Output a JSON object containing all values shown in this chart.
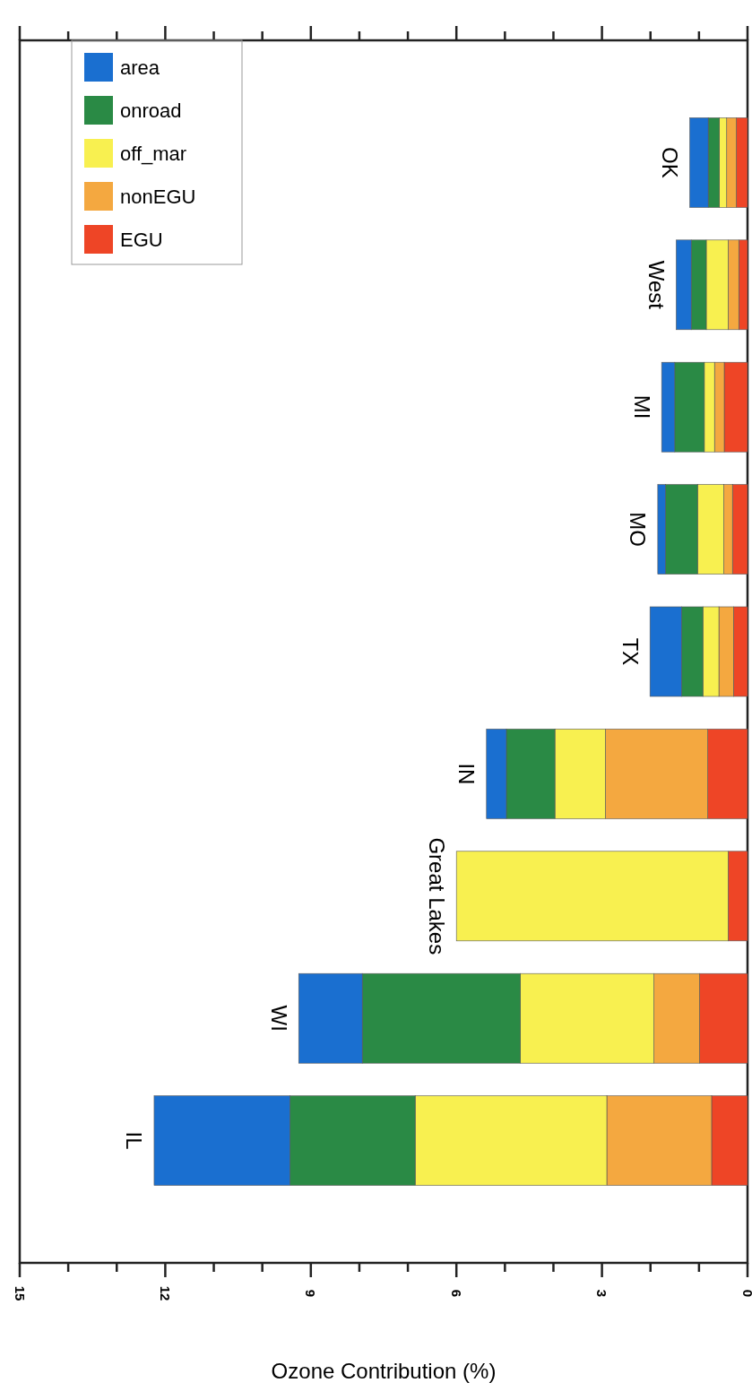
{
  "chart_data": {
    "type": "bar",
    "orientation": "horizontal",
    "stacked": true,
    "xlabel": "Ozone Contribution (%)",
    "categories": [
      "OK",
      "West",
      "MI",
      "MO",
      "TX",
      "IN",
      "Great Lakes",
      "WI",
      "IL"
    ],
    "series": [
      {
        "name": "EGU",
        "color": "#ee4526",
        "values": [
          0.23,
          0.18,
          0.48,
          0.31,
          0.29,
          0.82,
          0.4,
          0.99,
          0.74
        ]
      },
      {
        "name": "nonEGU",
        "color": "#f4a840",
        "values": [
          0.2,
          0.22,
          0.2,
          0.18,
          0.3,
          2.11,
          0,
          0.94,
          2.16
        ]
      },
      {
        "name": "off_mar",
        "color": "#f8f050",
        "values": [
          0.15,
          0.45,
          0.21,
          0.54,
          0.33,
          1.04,
          5.6,
          2.75,
          3.95
        ]
      },
      {
        "name": "onroad",
        "color": "#2a8a45",
        "values": [
          0.23,
          0.31,
          0.61,
          0.66,
          0.44,
          1.0,
          0,
          3.26,
          2.58
        ]
      },
      {
        "name": "area",
        "color": "#1a6fd0",
        "values": [
          0.38,
          0.31,
          0.27,
          0.16,
          0.65,
          0.41,
          0,
          1.31,
          2.8
        ]
      }
    ],
    "xlim": [
      15,
      0
    ],
    "xticks": [
      15,
      {
        "value": 14,
        "label": null
      },
      {
        "value": 13,
        "label": null
      },
      12,
      {
        "value": 11,
        "label": null
      },
      {
        "value": 10,
        "label": null
      },
      9,
      {
        "value": 8,
        "label": null
      },
      {
        "value": 7,
        "label": null
      },
      6,
      {
        "value": 5,
        "label": null
      },
      {
        "value": 4,
        "label": null
      },
      3,
      {
        "value": 2,
        "label": null
      },
      {
        "value": 1,
        "label": null
      },
      0
    ],
    "legend": "top left"
  }
}
